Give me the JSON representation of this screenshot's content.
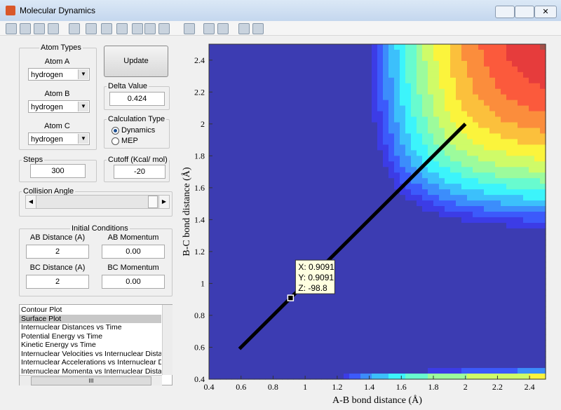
{
  "window": {
    "title": "Molecular Dynamics"
  },
  "atom_types": {
    "title": "Atom Types",
    "atoms": [
      {
        "label": "Atom A",
        "value": "hydrogen"
      },
      {
        "label": "Atom B",
        "value": "hydrogen"
      },
      {
        "label": "Atom C",
        "value": "hydrogen"
      }
    ]
  },
  "update_button": "Update",
  "delta_value": {
    "label": "Delta Value",
    "value": "0.424"
  },
  "calculation_type": {
    "label": "Calculation Type",
    "options": [
      "Dynamics",
      "MEP"
    ]
  },
  "steps": {
    "label": "Steps",
    "value": "300"
  },
  "cutoff": {
    "label": "Cutoff (Kcal/ mol)",
    "value": "-20"
  },
  "collision_angle": {
    "label": "Collision Angle"
  },
  "initial_conditions": {
    "title": "Initial Conditions",
    "fields": [
      {
        "label": "AB Distance (A)",
        "value": "2"
      },
      {
        "label": "AB Momentum",
        "value": "0.00"
      },
      {
        "label": "BC Distance (A)",
        "value": "2"
      },
      {
        "label": "BC Momentum",
        "value": "0.00"
      }
    ]
  },
  "plot_list": {
    "items": [
      "Contour Plot",
      "Surface Plot",
      "Internuclear Distances vs Time",
      "Potential Energy vs Time",
      "Kinetic Energy vs Time",
      "Internuclear Velocities vs Internuclear Distance",
      "Internuclear Accelerations vs Internuclear Dista",
      "Internuclear Momenta vs Internuclear Distance"
    ],
    "scroll_label": "III"
  },
  "plot": {
    "xlabel": "A-B bond distance (Å)",
    "ylabel": "B-C bond distance (Å)",
    "xlim": [
      0.4,
      2.5
    ],
    "ylim": [
      0.4,
      2.5
    ],
    "xticks": [
      0.4,
      0.6,
      0.8,
      1,
      1.2,
      1.4,
      1.6,
      1.8,
      2,
      2.2,
      2.4
    ],
    "yticks": [
      0.4,
      0.6,
      0.8,
      1,
      1.2,
      1.4,
      1.6,
      1.8,
      2,
      2.2,
      2.4
    ],
    "trajectory": {
      "x": [
        0.59,
        2
      ],
      "y": [
        0.59,
        2
      ]
    },
    "datatip": {
      "x": 0.9091,
      "y": 0.9091,
      "lines": [
        "X: 0.9091",
        "Y: 0.9091",
        "Z: -98.8"
      ]
    }
  }
}
